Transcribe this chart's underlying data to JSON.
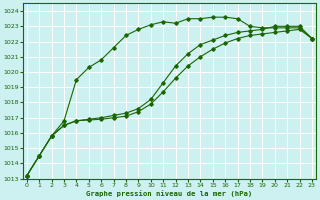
{
  "title": "Graphe pression niveau de la mer (hPa)",
  "bg_color": "#cdf0f0",
  "grid_color": "#ffffff",
  "line_color": "#1a6600",
  "xlim": [
    -0.3,
    23.3
  ],
  "ylim": [
    1013,
    1024.5
  ],
  "yticks": [
    1013,
    1014,
    1015,
    1016,
    1017,
    1018,
    1019,
    1020,
    1021,
    1022,
    1023,
    1024
  ],
  "xticks": [
    0,
    1,
    2,
    3,
    4,
    5,
    6,
    7,
    8,
    9,
    10,
    11,
    12,
    13,
    14,
    15,
    16,
    17,
    18,
    19,
    20,
    21,
    22,
    23
  ],
  "curve1_x": [
    0,
    1,
    2,
    3,
    4,
    5,
    6,
    7,
    8,
    9,
    10,
    11,
    12,
    13,
    14,
    15,
    16,
    17,
    18,
    19,
    20,
    21,
    22,
    23
  ],
  "curve1_y": [
    1013.2,
    1014.5,
    1015.8,
    1016.8,
    1019.5,
    1020.3,
    1020.8,
    1021.6,
    1022.4,
    1022.8,
    1023.1,
    1023.3,
    1023.2,
    1023.5,
    1023.5,
    1023.6,
    1023.6,
    1023.5,
    1023.0,
    1022.9,
    1022.9,
    1022.9,
    1022.9,
    1022.2
  ],
  "curve2_x": [
    0,
    1,
    2,
    3,
    4,
    5,
    6,
    7,
    8,
    9,
    10,
    11,
    12,
    13,
    14,
    15,
    16,
    17,
    18,
    19,
    20,
    21,
    22,
    23
  ],
  "curve2_y": [
    1013.2,
    1014.5,
    1015.8,
    1016.5,
    1016.8,
    1016.9,
    1017.0,
    1017.15,
    1017.3,
    1017.6,
    1018.2,
    1019.3,
    1020.4,
    1021.2,
    1021.8,
    1022.1,
    1022.4,
    1022.6,
    1022.7,
    1022.8,
    1023.0,
    1023.0,
    1023.0,
    1022.2
  ],
  "curve3_x": [
    0,
    1,
    2,
    3,
    4,
    5,
    6,
    7,
    8,
    9,
    10,
    11,
    12,
    13,
    14,
    15,
    16,
    17,
    18,
    19,
    20,
    21,
    22,
    23
  ],
  "curve3_y": [
    1013.2,
    1014.5,
    1015.8,
    1016.5,
    1016.8,
    1016.85,
    1016.9,
    1017.0,
    1017.1,
    1017.4,
    1017.9,
    1018.7,
    1019.6,
    1020.4,
    1021.0,
    1021.5,
    1021.9,
    1022.2,
    1022.4,
    1022.5,
    1022.6,
    1022.7,
    1022.8,
    1022.2
  ]
}
